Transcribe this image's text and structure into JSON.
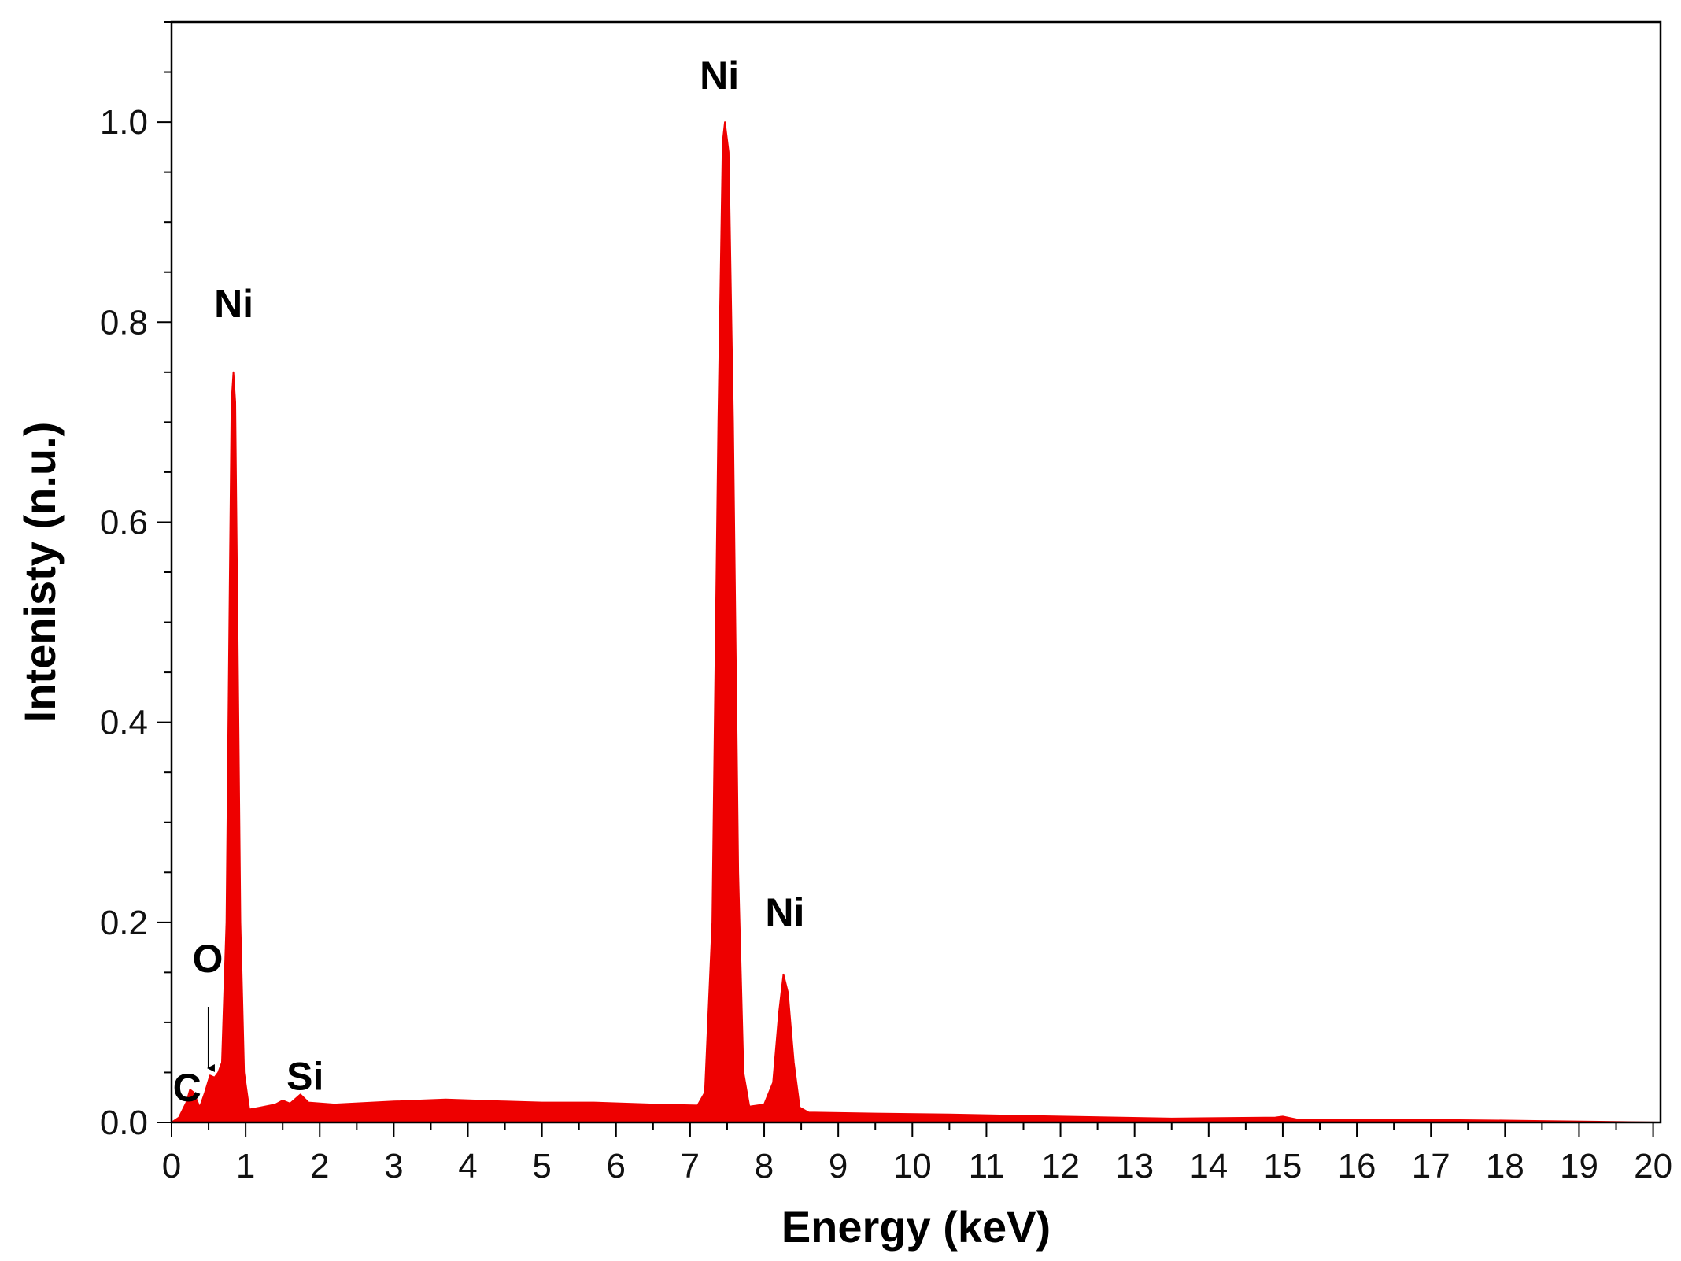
{
  "chart_data": {
    "type": "area",
    "title": "",
    "xlabel": "Energy (keV)",
    "ylabel": "Intenisty (n.u.)",
    "xlim": [
      0,
      20.1
    ],
    "ylim": [
      0,
      1.1
    ],
    "x_ticks": [
      0,
      1,
      2,
      3,
      4,
      5,
      6,
      7,
      8,
      9,
      10,
      11,
      12,
      13,
      14,
      15,
      16,
      17,
      18,
      19,
      20
    ],
    "x_tick_labels": [
      "0",
      "1",
      "2",
      "3",
      "4",
      "5",
      "6",
      "7",
      "8",
      "9",
      "10",
      "11",
      "12",
      "13",
      "14",
      "15",
      "16",
      "17",
      "18",
      "19",
      "20"
    ],
    "y_ticks": [
      0.0,
      0.2,
      0.4,
      0.6,
      0.8,
      1.0
    ],
    "y_tick_labels": [
      "0.0",
      "0.2",
      "0.4",
      "0.6",
      "0.8",
      "1.0"
    ],
    "grid": false,
    "series": [
      {
        "name": "EDS spectrum",
        "color": "#ee0000",
        "points": [
          [
            0.0,
            0.0
          ],
          [
            0.1,
            0.005
          ],
          [
            0.2,
            0.02
          ],
          [
            0.25,
            0.033
          ],
          [
            0.3,
            0.03
          ],
          [
            0.38,
            0.015
          ],
          [
            0.45,
            0.03
          ],
          [
            0.52,
            0.047
          ],
          [
            0.58,
            0.045
          ],
          [
            0.63,
            0.05
          ],
          [
            0.68,
            0.06
          ],
          [
            0.74,
            0.2
          ],
          [
            0.78,
            0.5
          ],
          [
            0.81,
            0.72
          ],
          [
            0.835,
            0.75
          ],
          [
            0.86,
            0.72
          ],
          [
            0.89,
            0.5
          ],
          [
            0.93,
            0.2
          ],
          [
            0.98,
            0.05
          ],
          [
            1.05,
            0.013
          ],
          [
            1.2,
            0.015
          ],
          [
            1.4,
            0.018
          ],
          [
            1.5,
            0.022
          ],
          [
            1.6,
            0.019
          ],
          [
            1.74,
            0.028
          ],
          [
            1.85,
            0.02
          ],
          [
            2.2,
            0.018
          ],
          [
            3.0,
            0.021
          ],
          [
            3.7,
            0.023
          ],
          [
            4.5,
            0.021
          ],
          [
            5.0,
            0.02
          ],
          [
            5.7,
            0.02
          ],
          [
            6.5,
            0.018
          ],
          [
            7.1,
            0.017
          ],
          [
            7.2,
            0.03
          ],
          [
            7.3,
            0.2
          ],
          [
            7.38,
            0.7
          ],
          [
            7.44,
            0.98
          ],
          [
            7.47,
            1.0
          ],
          [
            7.52,
            0.97
          ],
          [
            7.58,
            0.7
          ],
          [
            7.65,
            0.25
          ],
          [
            7.72,
            0.05
          ],
          [
            7.8,
            0.016
          ],
          [
            8.0,
            0.018
          ],
          [
            8.12,
            0.04
          ],
          [
            8.2,
            0.11
          ],
          [
            8.26,
            0.148
          ],
          [
            8.32,
            0.13
          ],
          [
            8.4,
            0.06
          ],
          [
            8.48,
            0.015
          ],
          [
            8.6,
            0.01
          ],
          [
            9.5,
            0.009
          ],
          [
            10.5,
            0.008
          ],
          [
            12.0,
            0.006
          ],
          [
            13.5,
            0.004
          ],
          [
            14.9,
            0.005
          ],
          [
            15.0,
            0.006
          ],
          [
            15.2,
            0.003
          ],
          [
            16.5,
            0.003
          ],
          [
            18.0,
            0.002
          ],
          [
            18.5,
            0.0015
          ],
          [
            20.1,
            0.0
          ]
        ]
      }
    ],
    "annotations": [
      {
        "text": "Ni",
        "x": 0.84,
        "y": 0.75
      },
      {
        "text": "Ni",
        "x": 7.47,
        "y": 1.0
      },
      {
        "text": "Ni",
        "x": 8.28,
        "y": 0.148
      },
      {
        "text": "O",
        "x": 0.52,
        "y": 0.048
      },
      {
        "text": "C",
        "x": 0.22,
        "y": 0.034
      },
      {
        "text": "Si",
        "x": 1.74,
        "y": 0.028
      }
    ]
  }
}
